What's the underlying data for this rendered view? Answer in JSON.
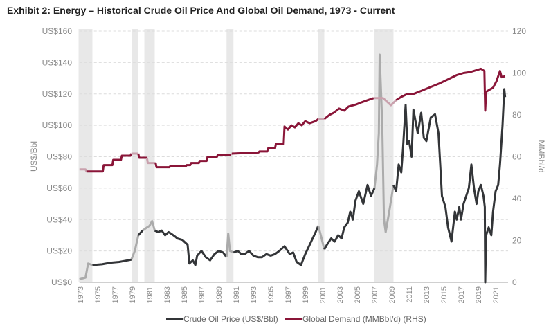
{
  "title": "Exhibit 2: Energy – Historical Crude Oil Price And Global Oil Demand, 1973 - Current",
  "chart_data": {
    "type": "line",
    "title": "Exhibit 2: Energy – Historical Crude Oil Price And Global Oil Demand, 1973 - Current",
    "xlim": [
      1972.8,
      2022.3
    ],
    "x_ticks": [
      "1973",
      "1975",
      "1977",
      "1979",
      "1981",
      "1983",
      "1985",
      "1987",
      "1989",
      "1991",
      "1993",
      "1995",
      "1997",
      "1999",
      "2001",
      "2003",
      "2005",
      "2007",
      "2009",
      "2011",
      "2013",
      "2015",
      "2017",
      "2019",
      "2021"
    ],
    "ylabel_left": "US$/Bbl",
    "ylabel_right": "MMBbl/d",
    "ylim_left": [
      0,
      160
    ],
    "ylim_right": [
      0,
      120
    ],
    "y_ticks_left": [
      "US$0",
      "US$20",
      "US$40",
      "US$60",
      "US$80",
      "US$100",
      "US$120",
      "US$140",
      "US$160"
    ],
    "y_ticks_right": [
      "0",
      "20",
      "40",
      "60",
      "80",
      "100",
      "120"
    ],
    "grid": true,
    "legend_position": "bottom",
    "recession_bands": [
      [
        1972.8,
        1974.4
      ],
      [
        1979.0,
        1979.7
      ],
      [
        1980.4,
        1981.6
      ],
      [
        1989.9,
        1990.7
      ],
      [
        2000.5,
        2001.2
      ],
      [
        2007.0,
        2009.2
      ]
    ],
    "colors": {
      "oil": "#333538",
      "oil_recession": "#ababab",
      "demand": "#8a1538",
      "demand_recession": "#c9a1ad",
      "band": "#e8e8e8",
      "grid": "#dcdcdc"
    },
    "series": [
      {
        "name": "Crude Oil Price (US$/Bbl)",
        "axis": "left",
        "points": [
          [
            1972.9,
            2
          ],
          [
            1973.6,
            3
          ],
          [
            1973.9,
            12
          ],
          [
            1974.4,
            11
          ],
          [
            1975.5,
            11.5
          ],
          [
            1976.5,
            12.5
          ],
          [
            1977.5,
            13
          ],
          [
            1978.5,
            14
          ],
          [
            1978.9,
            14.5
          ],
          [
            1979.3,
            20
          ],
          [
            1979.7,
            30
          ],
          [
            1980.2,
            33
          ],
          [
            1980.7,
            35
          ],
          [
            1981.0,
            36
          ],
          [
            1981.3,
            39
          ],
          [
            1981.5,
            35
          ],
          [
            1981.6,
            33
          ],
          [
            1982.0,
            32
          ],
          [
            1982.4,
            33
          ],
          [
            1982.8,
            30
          ],
          [
            1983.2,
            32
          ],
          [
            1983.5,
            31
          ],
          [
            1984.0,
            29
          ],
          [
            1984.2,
            28
          ],
          [
            1984.8,
            27
          ],
          [
            1985.4,
            24
          ],
          [
            1985.6,
            12
          ],
          [
            1986.0,
            14
          ],
          [
            1986.3,
            11
          ],
          [
            1986.5,
            17
          ],
          [
            1987.0,
            20
          ],
          [
            1987.5,
            16
          ],
          [
            1988.0,
            14
          ],
          [
            1988.5,
            18
          ],
          [
            1989.0,
            20
          ],
          [
            1989.5,
            19
          ],
          [
            1989.9,
            16
          ],
          [
            1990.1,
            31
          ],
          [
            1990.3,
            20
          ],
          [
            1990.7,
            19
          ],
          [
            1991.2,
            20
          ],
          [
            1991.6,
            18
          ],
          [
            1992.0,
            18
          ],
          [
            1992.5,
            20
          ],
          [
            1993.0,
            17
          ],
          [
            1993.5,
            16
          ],
          [
            1994.0,
            16
          ],
          [
            1994.5,
            18
          ],
          [
            1995.0,
            17
          ],
          [
            1995.5,
            18
          ],
          [
            1996.0,
            20
          ],
          [
            1996.6,
            23
          ],
          [
            1997.2,
            18
          ],
          [
            1997.6,
            19
          ],
          [
            1998.0,
            13
          ],
          [
            1998.5,
            11
          ],
          [
            1999.0,
            18
          ],
          [
            1999.6,
            25
          ],
          [
            2000.2,
            32
          ],
          [
            2000.5,
            36
          ],
          [
            2000.8,
            30
          ],
          [
            2001.2,
            21
          ],
          [
            2001.5,
            24
          ],
          [
            2002.0,
            28
          ],
          [
            2002.4,
            26
          ],
          [
            2002.8,
            30
          ],
          [
            2003.2,
            28
          ],
          [
            2003.5,
            35
          ],
          [
            2003.9,
            38
          ],
          [
            2004.2,
            45
          ],
          [
            2004.5,
            40
          ],
          [
            2004.8,
            52
          ],
          [
            2005.2,
            58
          ],
          [
            2005.7,
            50
          ],
          [
            2006.2,
            62
          ],
          [
            2006.6,
            55
          ],
          [
            2007.0,
            60
          ],
          [
            2007.3,
            75
          ],
          [
            2007.5,
            95
          ],
          [
            2007.6,
            145
          ],
          [
            2007.9,
            100
          ],
          [
            2008.1,
            40
          ],
          [
            2008.3,
            32
          ],
          [
            2008.7,
            45
          ],
          [
            2009.2,
            62
          ],
          [
            2009.5,
            58
          ],
          [
            2009.8,
            75
          ],
          [
            2010.1,
            70
          ],
          [
            2010.3,
            85
          ],
          [
            2010.6,
            113
          ],
          [
            2010.8,
            88
          ],
          [
            2011.0,
            90
          ],
          [
            2011.3,
            80
          ],
          [
            2011.5,
            110
          ],
          [
            2012.0,
            95
          ],
          [
            2012.4,
            108
          ],
          [
            2012.7,
            92
          ],
          [
            2013.0,
            90
          ],
          [
            2013.5,
            105
          ],
          [
            2014.0,
            107
          ],
          [
            2014.4,
            95
          ],
          [
            2014.8,
            55
          ],
          [
            2015.2,
            48
          ],
          [
            2015.5,
            35
          ],
          [
            2015.9,
            26
          ],
          [
            2016.3,
            45
          ],
          [
            2016.5,
            40
          ],
          [
            2016.8,
            48
          ],
          [
            2017.0,
            40
          ],
          [
            2017.3,
            50
          ],
          [
            2017.9,
            60
          ],
          [
            2018.2,
            75
          ],
          [
            2018.5,
            60
          ],
          [
            2018.8,
            50
          ],
          [
            2019.0,
            58
          ],
          [
            2019.3,
            62
          ],
          [
            2019.6,
            55
          ],
          [
            2019.75,
            48
          ],
          [
            2019.8,
            0
          ],
          [
            2019.9,
            30
          ],
          [
            2020.2,
            35
          ],
          [
            2020.5,
            30
          ],
          [
            2020.7,
            45
          ],
          [
            2021.0,
            58
          ],
          [
            2021.3,
            62
          ],
          [
            2021.5,
            75
          ],
          [
            2021.8,
            100
          ],
          [
            2022.0,
            123
          ],
          [
            2022.1,
            118
          ]
        ]
      },
      {
        "name": "Global Demand (MMBbl/d) (RHS)",
        "axis": "right",
        "points": [
          [
            1972.9,
            54
          ],
          [
            1973.6,
            54
          ],
          [
            1973.7,
            53
          ],
          [
            1975.6,
            53
          ],
          [
            1975.7,
            56
          ],
          [
            1976.7,
            56
          ],
          [
            1976.8,
            58.5
          ],
          [
            1977.7,
            58.5
          ],
          [
            1977.8,
            60.5
          ],
          [
            1978.8,
            60.5
          ],
          [
            1978.9,
            61.5
          ],
          [
            1979.7,
            61.5
          ],
          [
            1979.8,
            59.5
          ],
          [
            1980.7,
            59.5
          ],
          [
            1980.8,
            57
          ],
          [
            1981.7,
            57
          ],
          [
            1981.8,
            55
          ],
          [
            1983.3,
            55
          ],
          [
            1983.4,
            55.5
          ],
          [
            1985.2,
            55.5
          ],
          [
            1985.3,
            56
          ],
          [
            1985.7,
            56
          ],
          [
            1985.8,
            57
          ],
          [
            1986.7,
            57
          ],
          [
            1986.8,
            58
          ],
          [
            1987.6,
            58
          ],
          [
            1987.7,
            60
          ],
          [
            1988.8,
            60
          ],
          [
            1988.9,
            61
          ],
          [
            1990.4,
            61
          ],
          [
            1990.5,
            61.5
          ],
          [
            1993.6,
            62
          ],
          [
            1993.7,
            62.5
          ],
          [
            1994.6,
            62.5
          ],
          [
            1994.7,
            64
          ],
          [
            1995.5,
            64
          ],
          [
            1995.6,
            66
          ],
          [
            1996.5,
            66
          ],
          [
            1996.6,
            74.4
          ],
          [
            1997.0,
            73
          ],
          [
            1997.4,
            75
          ],
          [
            1997.8,
            74
          ],
          [
            1998.2,
            76
          ],
          [
            1998.6,
            75
          ],
          [
            1999.0,
            77
          ],
          [
            1999.5,
            76
          ],
          [
            2000.2,
            77
          ],
          [
            2000.5,
            78
          ],
          [
            2001.2,
            78
          ],
          [
            2001.8,
            80
          ],
          [
            2002.3,
            81
          ],
          [
            2002.9,
            83
          ],
          [
            2003.5,
            82
          ],
          [
            2004.0,
            84
          ],
          [
            2004.9,
            85
          ],
          [
            2005.5,
            86
          ],
          [
            2006.2,
            87
          ],
          [
            2006.9,
            88
          ],
          [
            2008.0,
            88
          ],
          [
            2008.9,
            84.6
          ],
          [
            2009.5,
            87
          ],
          [
            2010.1,
            88.6
          ],
          [
            2010.8,
            90
          ],
          [
            2011.5,
            90
          ],
          [
            2012.5,
            91.6
          ],
          [
            2013.3,
            93
          ],
          [
            2014.5,
            95
          ],
          [
            2015.5,
            97
          ],
          [
            2016.5,
            99
          ],
          [
            2017.3,
            100
          ],
          [
            2018.1,
            100.5
          ],
          [
            2019.3,
            102
          ],
          [
            2019.7,
            101
          ],
          [
            2019.8,
            82
          ],
          [
            2019.9,
            91
          ],
          [
            2020.3,
            92
          ],
          [
            2020.7,
            93
          ],
          [
            2021.1,
            96
          ],
          [
            2021.5,
            101
          ],
          [
            2021.7,
            98
          ],
          [
            2022.1,
            98.5
          ]
        ]
      }
    ]
  }
}
